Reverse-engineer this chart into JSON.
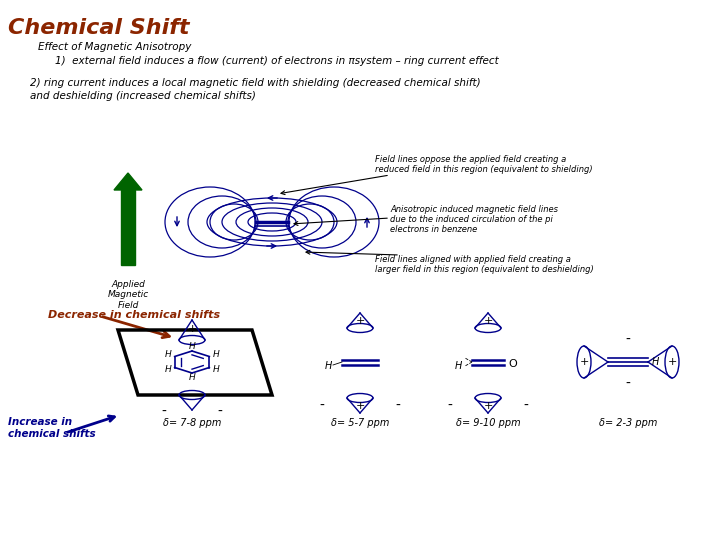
{
  "title": "Chemical Shift",
  "title_color": "#8B2500",
  "title_fontsize": 16,
  "bg_color": "#FFFFFF",
  "text1": "Effect of Magnetic Anisotropy",
  "text2": "1)  external field induces a flow (current) of electrons in πsystem – ring current effect",
  "text3_a": "2) ring current induces a local magnetic field with shielding (decreased chemical shift)",
  "text3_b": "and deshielding (increased chemical shifts)",
  "annotation1_a": "Field lines oppose the applied field creating a",
  "annotation1_b": "reduced field in this region (equivalent to shielding)",
  "annotation2_a": "Anisotropic induced magnetic field lines",
  "annotation2_b": "due to the induced circulation of the pi",
  "annotation2_c": "electrons in benzene",
  "annotation3_a": "Field lines aligned with applied field creating a",
  "annotation3_b": "larger field in this region (equivalent to deshielding)",
  "applied_label": "Applied\nMagnetic\nField",
  "decrease_label": "Decrease in chemical shifts",
  "increase_label": "Increase in\nchemical shifts",
  "delta1": "δ= 7-8 ppm",
  "delta2": "δ= 5-7 ppm",
  "delta3": "δ= 9-10 ppm",
  "delta4": "δ= 2-3 ppm",
  "blue_color": "#00008B",
  "brown_color": "#8B2500",
  "green_color": "#006400",
  "text_color": "#000000",
  "navy": "#00008B"
}
